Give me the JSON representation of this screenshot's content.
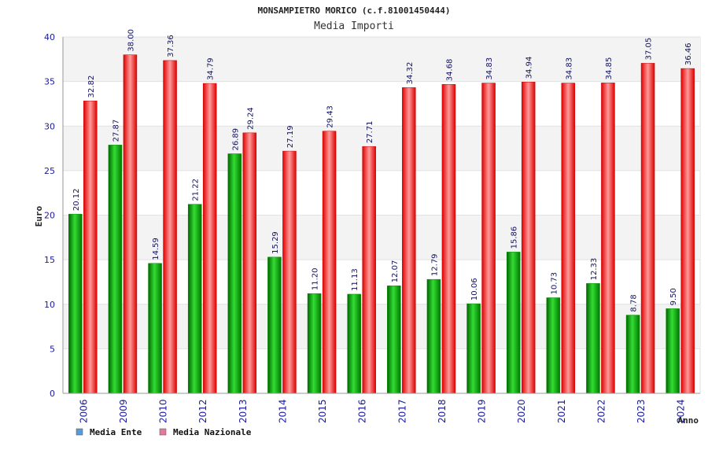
{
  "chart_data": {
    "type": "bar",
    "title": "MONSAMPIETRO MORICO (c.f.81001450444)",
    "subtitle": "Media Importi",
    "xlabel": "Anno",
    "ylabel": "Euro",
    "ylim": [
      0,
      40
    ],
    "yticks": [
      "0",
      "5",
      "10",
      "15",
      "20",
      "25",
      "30",
      "35",
      "40"
    ],
    "grid": true,
    "legend_position": "bottom-left",
    "categories": [
      "2006",
      "2009",
      "2010",
      "2012",
      "2013",
      "2014",
      "2015",
      "2016",
      "2017",
      "2018",
      "2019",
      "2020",
      "2021",
      "2022",
      "2023",
      "2024"
    ],
    "series": [
      {
        "name": "Media Ente",
        "color": "#00aa00",
        "legend_color": "#5b9bd5",
        "values": [
          20.12,
          27.87,
          14.59,
          21.22,
          26.89,
          15.29,
          11.2,
          11.13,
          12.07,
          12.79,
          10.06,
          15.86,
          10.73,
          12.33,
          8.78,
          9.5
        ],
        "labels": [
          "20.12",
          "27.87",
          "14.59",
          "21.22",
          "26.89",
          "15.29",
          "11.20",
          "11.13",
          "12.07",
          "12.79",
          "10.06",
          "15.86",
          "10.73",
          "12.33",
          "8.78",
          "9.50"
        ]
      },
      {
        "name": "Media Nazionale",
        "color": "#ee1111",
        "legend_color": "#e07aa0",
        "values": [
          32.82,
          38.0,
          37.36,
          34.79,
          29.24,
          27.19,
          29.43,
          27.71,
          34.32,
          34.68,
          34.83,
          34.94,
          34.83,
          34.85,
          37.05,
          36.46
        ],
        "labels": [
          "32.82",
          "38.00",
          "37.36",
          "34.79",
          "29.24",
          "27.19",
          "29.43",
          "27.71",
          "34.32",
          "34.68",
          "34.83",
          "34.94",
          "34.83",
          "34.85",
          "37.05",
          "36.46"
        ]
      }
    ]
  }
}
